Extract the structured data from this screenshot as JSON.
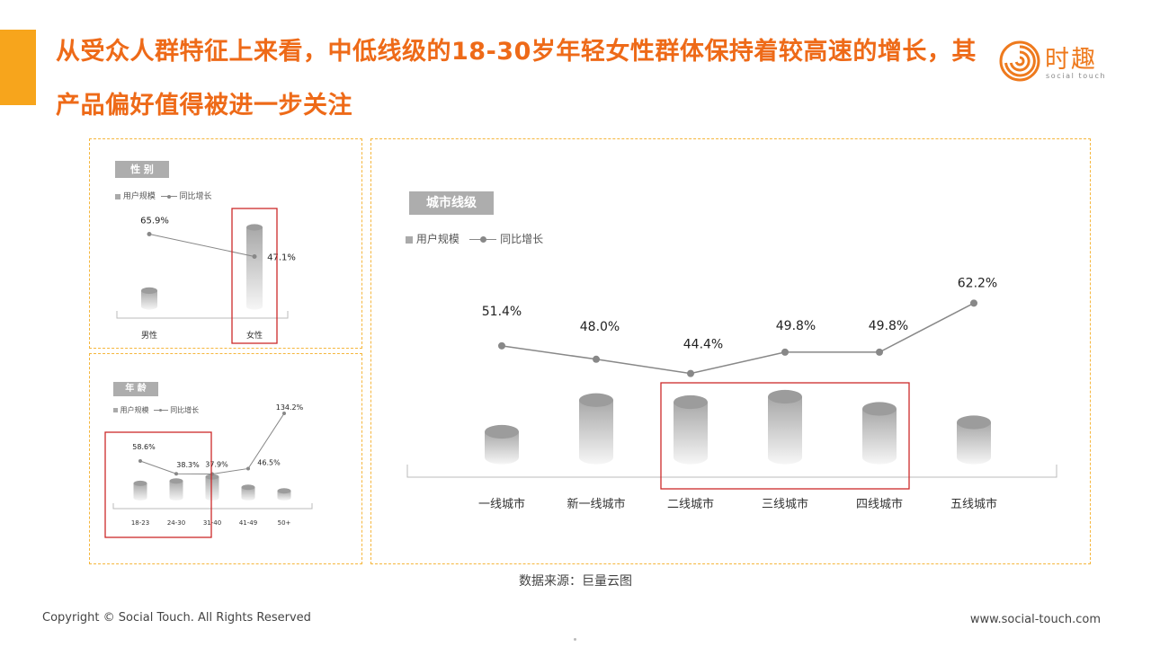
{
  "headline": "从受众人群特征上来看，中低线级的18-30岁年轻女性群体保持着较高速的增长，其产品偏好值得被进一步关注",
  "logo": {
    "name": "时趣",
    "tagline": "social touch",
    "color": "#ee7a1e"
  },
  "colors": {
    "accent": "#f7a51c",
    "headline": "#ee6a18",
    "highlight_box": "#cc2a2a",
    "panel_border": "#f5b63c",
    "line": "#888888"
  },
  "legend": {
    "bar_label": "用户规模",
    "line_label": "同比增长"
  },
  "gender": {
    "badge": "性 别",
    "chart_data": {
      "type": "bar",
      "categories": [
        "男性",
        "女性"
      ],
      "series": [
        {
          "name": "用户规模",
          "values": [
            0.2,
            1.0
          ]
        },
        {
          "name": "同比增长",
          "values": [
            65.9,
            47.1
          ],
          "labels": [
            "65.9%",
            "47.1%"
          ]
        }
      ],
      "highlighted": [
        "女性"
      ]
    }
  },
  "age": {
    "badge": "年 龄",
    "chart_data": {
      "type": "bar",
      "categories": [
        "18-23",
        "24-30",
        "31-40",
        "41-49",
        "50+"
      ],
      "series": [
        {
          "name": "用户规模",
          "values": [
            0.62,
            0.72,
            0.9,
            0.45,
            0.3
          ]
        },
        {
          "name": "同比增长",
          "values": [
            58.6,
            38.3,
            37.9,
            46.5,
            134.2
          ],
          "labels": [
            "58.6%",
            "38.3%",
            "37.9%",
            "46.5%",
            "134.2%"
          ]
        }
      ],
      "highlighted": [
        "18-23",
        "24-30"
      ]
    }
  },
  "city": {
    "badge": "城市线级",
    "chart_data": {
      "type": "bar",
      "categories": [
        "一线城市",
        "新一线城市",
        "二线城市",
        "三线城市",
        "四线城市",
        "五线城市"
      ],
      "series": [
        {
          "name": "用户规模",
          "values": [
            0.38,
            0.85,
            0.82,
            0.9,
            0.72,
            0.52
          ]
        },
        {
          "name": "同比增长",
          "values": [
            51.4,
            48.0,
            44.4,
            49.8,
            49.8,
            62.2
          ],
          "labels": [
            "51.4%",
            "48.0%",
            "44.4%",
            "49.8%",
            "49.8%",
            "62.2%"
          ]
        }
      ],
      "highlighted": [
        "二线城市",
        "三线城市",
        "四线城市"
      ]
    }
  },
  "source": "数据来源：巨量云图",
  "copyright": "Copyright © Social Touch. All Rights Reserved",
  "website": "www.social-touch.com"
}
